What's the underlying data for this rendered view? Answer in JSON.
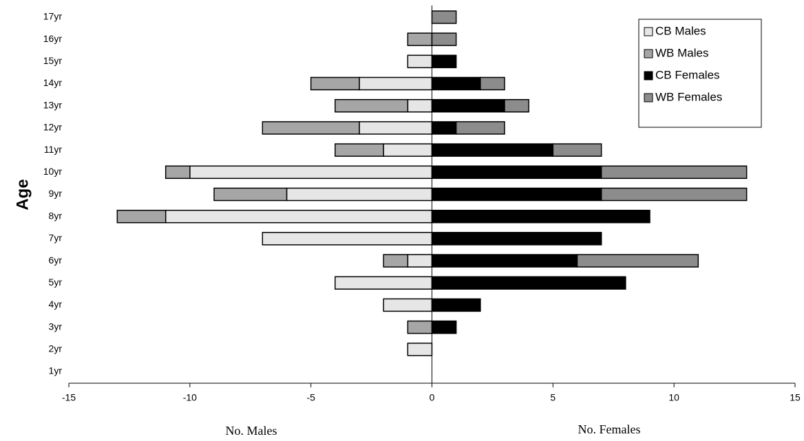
{
  "chart_data": {
    "type": "pyramid",
    "y_label": "Age",
    "x_label_left": "No. Males",
    "x_label_right": "No. Females",
    "categories": [
      "1yr",
      "2yr",
      "3yr",
      "4yr",
      "5yr",
      "6yr",
      "7yr",
      "8yr",
      "9yr",
      "10yr",
      "11yr",
      "12yr",
      "13yr",
      "14yr",
      "15yr",
      "16yr",
      "17yr"
    ],
    "series": [
      {
        "name": "CB Males",
        "color": "#e6e6e6",
        "values": [
          0,
          -1,
          0,
          -2,
          -4,
          -1,
          -7,
          -11,
          -6,
          -10,
          -2,
          -3,
          -1,
          -3,
          -1,
          0,
          0
        ]
      },
      {
        "name": "WB Males",
        "color": "#a6a6a6",
        "values": [
          0,
          0,
          -1,
          0,
          0,
          -1,
          0,
          -2,
          -3,
          -1,
          -2,
          -4,
          -3,
          -2,
          0,
          -1,
          0
        ]
      },
      {
        "name": "CB Females",
        "color": "#000000",
        "values": [
          0,
          0,
          1,
          2,
          8,
          6,
          7,
          9,
          7,
          7,
          5,
          1,
          3,
          2,
          1,
          0,
          0
        ]
      },
      {
        "name": "WB Females",
        "color": "#8c8c8c",
        "values": [
          0,
          0,
          0,
          0,
          0,
          5,
          0,
          0,
          6,
          6,
          2,
          2,
          1,
          1,
          0,
          1,
          1
        ]
      }
    ],
    "xlim": [
      -15,
      15
    ],
    "xticks": [
      -15,
      -10,
      -5,
      0,
      5,
      10,
      15
    ],
    "legend": "top-right"
  }
}
